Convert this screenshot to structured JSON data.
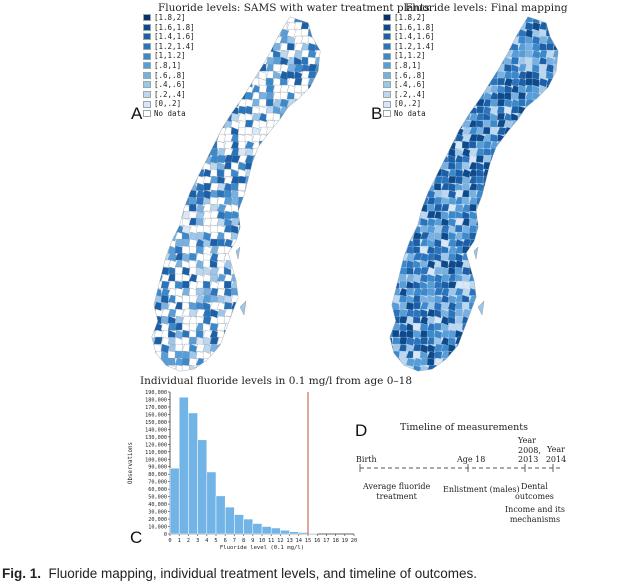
{
  "panel_a": {
    "letter": "A",
    "title": "Fluoride levels: SAMS with water treatment plants",
    "legend": [
      {
        "label": "[1.8,2]",
        "color": "#08306b"
      },
      {
        "label": "[1.6,1.8]",
        "color": "#0d4a8c"
      },
      {
        "label": "[1.4,1.6]",
        "color": "#1a5fa8"
      },
      {
        "label": "[1.2,1.4]",
        "color": "#2a74bd"
      },
      {
        "label": "[1,1.2]",
        "color": "#3a89cc"
      },
      {
        "label": "[.8,1]",
        "color": "#579dd8"
      },
      {
        "label": "[.6,.8]",
        "color": "#78b1e1"
      },
      {
        "label": "[.4,.6]",
        "color": "#9cc6ea"
      },
      {
        "label": "[.2,.4]",
        "color": "#bcd8f0"
      },
      {
        "label": "[0,.2]",
        "color": "#d9e8f6"
      },
      {
        "label": "No data",
        "color": "#ffffff"
      }
    ]
  },
  "panel_b": {
    "letter": "B",
    "title": "Fluoride levels: Final mapping",
    "legend": [
      {
        "label": "[1.8,2]",
        "color": "#08306b"
      },
      {
        "label": "[1.6,1.8]",
        "color": "#0d4a8c"
      },
      {
        "label": "[1.4,1.6]",
        "color": "#1a5fa8"
      },
      {
        "label": "[1.2,1.4]",
        "color": "#2a74bd"
      },
      {
        "label": "[1,1.2]",
        "color": "#3a89cc"
      },
      {
        "label": "[.8,1]",
        "color": "#579dd8"
      },
      {
        "label": "[.6,.8]",
        "color": "#78b1e1"
      },
      {
        "label": "[.4,.6]",
        "color": "#9cc6ea"
      },
      {
        "label": "[.2,.4]",
        "color": "#bcd8f0"
      },
      {
        "label": "[0,.2]",
        "color": "#d9e8f6"
      },
      {
        "label": "No data",
        "color": "#ffffff"
      }
    ]
  },
  "panel_c": {
    "letter": "C",
    "title": "Individual fluoride levels in 0.1 mg/l from age 0–18"
  },
  "panel_d": {
    "letter": "D",
    "title": "Timeline of measurements",
    "labels": {
      "birth": "Birth",
      "age18": "Age 18",
      "year_top": "Year",
      "year_2008": "2008,",
      "year_2013": "2013",
      "year_2014": "Year 2014",
      "avg_treatment_1": "Average fluoride",
      "avg_treatment_2": "treatment",
      "enlistment": "Enlistment (males)",
      "dental_1": "Dental",
      "dental_2": "outcomes",
      "income_1": "Income and its",
      "income_2": "mechanisms"
    }
  },
  "caption": {
    "label": "Fig. 1.",
    "text": "Fluoride mapping, individual treatment levels, and timeline of outcomes."
  },
  "chart_data": {
    "type": "bar",
    "title": "Individual fluoride levels in 0.1 mg/l from age 0–18",
    "xlabel": "Fluoride level (0.1 mg/l)",
    "ylabel": "Observations",
    "ylim": [
      0,
      190000
    ],
    "yticks": [
      0,
      10000,
      20000,
      30000,
      40000,
      50000,
      60000,
      70000,
      80000,
      90000,
      100000,
      110000,
      120000,
      130000,
      140000,
      150000,
      160000,
      170000,
      180000,
      190000
    ],
    "ytick_labels": [
      "0",
      "10,000",
      "20,000",
      "30,000",
      "40,000",
      "50,000",
      "60,000",
      "70,000",
      "80,000",
      "90,000",
      "100,000",
      "110,000",
      "120,000",
      "130,000",
      "140,000",
      "150,000",
      "160,000",
      "170,000",
      "180,000",
      "190,000"
    ],
    "xticks": [
      0,
      1,
      2,
      3,
      4,
      5,
      6,
      7,
      8,
      9,
      10,
      11,
      12,
      13,
      14,
      15,
      16,
      17,
      18,
      19,
      20
    ],
    "bins": [
      [
        0,
        1
      ],
      [
        1,
        2
      ],
      [
        2,
        3
      ],
      [
        3,
        4
      ],
      [
        4,
        5
      ],
      [
        5,
        6
      ],
      [
        6,
        7
      ],
      [
        7,
        8
      ],
      [
        8,
        9
      ],
      [
        9,
        10
      ],
      [
        10,
        11
      ],
      [
        11,
        12
      ],
      [
        12,
        13
      ],
      [
        13,
        14
      ],
      [
        14,
        15
      ],
      [
        15,
        16
      ]
    ],
    "values": [
      88000,
      183000,
      162000,
      126000,
      83000,
      51000,
      36000,
      26000,
      20000,
      14000,
      10000,
      8000,
      5000,
      3000,
      2000,
      1000
    ],
    "bar_color": "#73b4e6",
    "reference_line_x": 15,
    "reference_line_color": "#c0392b",
    "grid": false
  }
}
